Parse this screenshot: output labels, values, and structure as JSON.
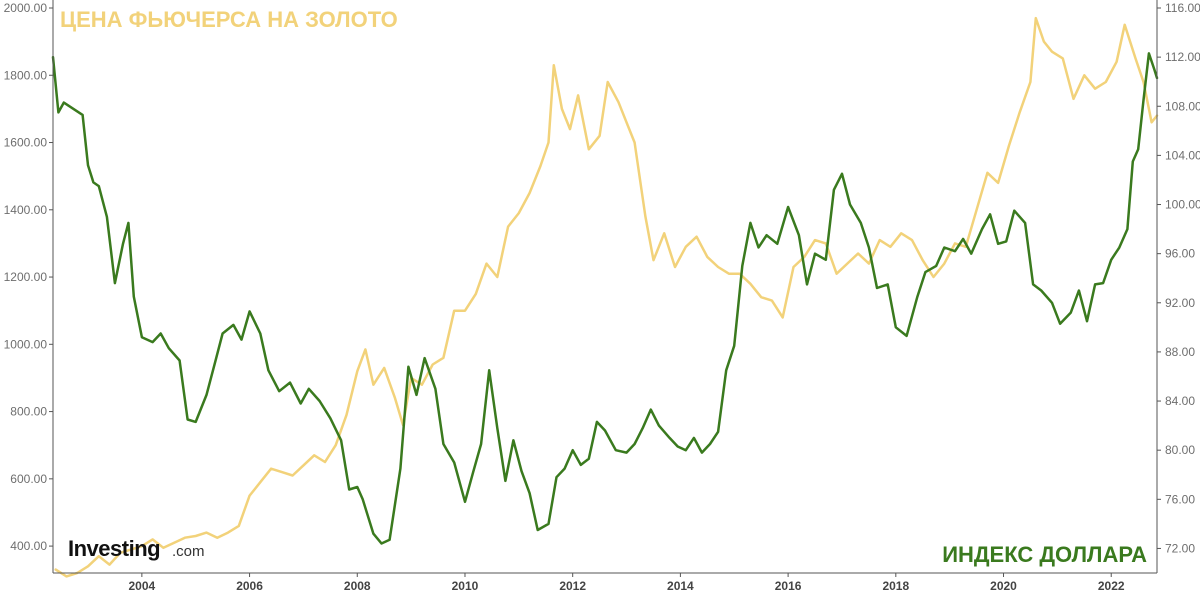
{
  "chart_data": {
    "type": "line",
    "title_gold": "ЦЕНА ФЬЮЧЕРСА НА ЗОЛОТО",
    "title_green": "ИНДЕКС ДОЛЛАРА",
    "brand_name": "Investing",
    "brand_suffix": ".com",
    "colors": {
      "gold": "#f2d27a",
      "green": "#3a7a1e",
      "axis": "#555555",
      "tick_text": "#6e6e6e"
    },
    "grid": false,
    "x_range": [
      2002.35,
      2022.85
    ],
    "x_ticks": [
      "2004",
      "2006",
      "2008",
      "2010",
      "2012",
      "2014",
      "2016",
      "2018",
      "2020",
      "2022"
    ],
    "y_left": {
      "range": [
        320,
        2000
      ],
      "ticks": [
        "2000.00",
        "1800.00",
        "1600.00",
        "1400.00",
        "1200.00",
        "1000.00",
        "800.00",
        "600.00",
        "400.00"
      ]
    },
    "y_right": {
      "range": [
        70,
        116
      ],
      "ticks": [
        "116.00",
        "112.00",
        "108.00",
        "104.00",
        "100.00",
        "96.00",
        "92.00",
        "88.00",
        "84.00",
        "80.00",
        "76.00",
        "72.00"
      ]
    },
    "series": [
      {
        "name": "ЦЕНА ФЬЮЧЕРСА НА ЗОЛОТО",
        "axis": "left",
        "color": "#f2d27a",
        "points": [
          [
            2002.4,
            330
          ],
          [
            2002.6,
            310
          ],
          [
            2002.8,
            320
          ],
          [
            2003.0,
            340
          ],
          [
            2003.2,
            370
          ],
          [
            2003.4,
            345
          ],
          [
            2003.6,
            380
          ],
          [
            2003.8,
            390
          ],
          [
            2004.0,
            400
          ],
          [
            2004.2,
            420
          ],
          [
            2004.4,
            395
          ],
          [
            2004.6,
            410
          ],
          [
            2004.8,
            425
          ],
          [
            2005.0,
            430
          ],
          [
            2005.2,
            440
          ],
          [
            2005.4,
            425
          ],
          [
            2005.6,
            440
          ],
          [
            2005.8,
            460
          ],
          [
            2006.0,
            550
          ],
          [
            2006.2,
            590
          ],
          [
            2006.4,
            630
          ],
          [
            2006.6,
            620
          ],
          [
            2006.8,
            610
          ],
          [
            2007.0,
            640
          ],
          [
            2007.2,
            670
          ],
          [
            2007.4,
            650
          ],
          [
            2007.6,
            700
          ],
          [
            2007.8,
            790
          ],
          [
            2008.0,
            920
          ],
          [
            2008.15,
            985
          ],
          [
            2008.3,
            880
          ],
          [
            2008.5,
            930
          ],
          [
            2008.7,
            840
          ],
          [
            2008.85,
            760
          ],
          [
            2009.0,
            900
          ],
          [
            2009.2,
            880
          ],
          [
            2009.4,
            940
          ],
          [
            2009.6,
            960
          ],
          [
            2009.8,
            1100
          ],
          [
            2010.0,
            1100
          ],
          [
            2010.2,
            1150
          ],
          [
            2010.4,
            1240
          ],
          [
            2010.6,
            1200
          ],
          [
            2010.8,
            1350
          ],
          [
            2011.0,
            1390
          ],
          [
            2011.2,
            1450
          ],
          [
            2011.4,
            1530
          ],
          [
            2011.55,
            1600
          ],
          [
            2011.65,
            1830
          ],
          [
            2011.8,
            1700
          ],
          [
            2011.95,
            1640
          ],
          [
            2012.1,
            1740
          ],
          [
            2012.3,
            1580
          ],
          [
            2012.5,
            1620
          ],
          [
            2012.65,
            1780
          ],
          [
            2012.85,
            1720
          ],
          [
            2013.0,
            1660
          ],
          [
            2013.15,
            1600
          ],
          [
            2013.35,
            1380
          ],
          [
            2013.5,
            1250
          ],
          [
            2013.7,
            1330
          ],
          [
            2013.9,
            1230
          ],
          [
            2014.1,
            1290
          ],
          [
            2014.3,
            1320
          ],
          [
            2014.5,
            1260
          ],
          [
            2014.7,
            1230
          ],
          [
            2014.9,
            1210
          ],
          [
            2015.1,
            1210
          ],
          [
            2015.3,
            1180
          ],
          [
            2015.5,
            1140
          ],
          [
            2015.7,
            1130
          ],
          [
            2015.9,
            1080
          ],
          [
            2016.1,
            1230
          ],
          [
            2016.3,
            1260
          ],
          [
            2016.5,
            1310
          ],
          [
            2016.7,
            1300
          ],
          [
            2016.9,
            1210
          ],
          [
            2017.1,
            1240
          ],
          [
            2017.3,
            1270
          ],
          [
            2017.5,
            1240
          ],
          [
            2017.7,
            1310
          ],
          [
            2017.9,
            1290
          ],
          [
            2018.1,
            1330
          ],
          [
            2018.3,
            1310
          ],
          [
            2018.5,
            1250
          ],
          [
            2018.7,
            1200
          ],
          [
            2018.9,
            1240
          ],
          [
            2019.1,
            1300
          ],
          [
            2019.3,
            1290
          ],
          [
            2019.5,
            1400
          ],
          [
            2019.7,
            1510
          ],
          [
            2019.9,
            1480
          ],
          [
            2020.1,
            1590
          ],
          [
            2020.3,
            1690
          ],
          [
            2020.5,
            1780
          ],
          [
            2020.6,
            1970
          ],
          [
            2020.75,
            1900
          ],
          [
            2020.9,
            1870
          ],
          [
            2021.1,
            1850
          ],
          [
            2021.3,
            1730
          ],
          [
            2021.5,
            1800
          ],
          [
            2021.7,
            1760
          ],
          [
            2021.9,
            1780
          ],
          [
            2022.1,
            1840
          ],
          [
            2022.25,
            1950
          ],
          [
            2022.45,
            1850
          ],
          [
            2022.6,
            1780
          ],
          [
            2022.75,
            1660
          ],
          [
            2022.85,
            1680
          ]
        ]
      },
      {
        "name": "ИНДЕКС ДОЛЛАРА",
        "axis": "right",
        "color": "#3a7a1e",
        "points": [
          [
            2002.35,
            112.0
          ],
          [
            2002.45,
            107.5
          ],
          [
            2002.55,
            108.3
          ],
          [
            2002.9,
            107.3
          ],
          [
            2003.0,
            103.2
          ],
          [
            2003.1,
            101.8
          ],
          [
            2003.2,
            101.5
          ],
          [
            2003.35,
            99.0
          ],
          [
            2003.5,
            93.6
          ],
          [
            2003.65,
            96.8
          ],
          [
            2003.75,
            98.5
          ],
          [
            2003.85,
            92.5
          ],
          [
            2004.0,
            89.2
          ],
          [
            2004.2,
            88.8
          ],
          [
            2004.35,
            89.5
          ],
          [
            2004.5,
            88.3
          ],
          [
            2004.7,
            87.3
          ],
          [
            2004.85,
            82.5
          ],
          [
            2005.0,
            82.3
          ],
          [
            2005.2,
            84.5
          ],
          [
            2005.35,
            87.0
          ],
          [
            2005.5,
            89.5
          ],
          [
            2005.7,
            90.2
          ],
          [
            2005.85,
            89.0
          ],
          [
            2006.0,
            91.3
          ],
          [
            2006.2,
            89.5
          ],
          [
            2006.35,
            86.5
          ],
          [
            2006.55,
            84.8
          ],
          [
            2006.75,
            85.5
          ],
          [
            2006.95,
            83.8
          ],
          [
            2007.1,
            85.0
          ],
          [
            2007.3,
            84.0
          ],
          [
            2007.5,
            82.6
          ],
          [
            2007.7,
            80.8
          ],
          [
            2007.85,
            76.8
          ],
          [
            2008.0,
            77.0
          ],
          [
            2008.1,
            76.0
          ],
          [
            2008.3,
            73.2
          ],
          [
            2008.45,
            72.4
          ],
          [
            2008.6,
            72.7
          ],
          [
            2008.8,
            78.5
          ],
          [
            2008.95,
            86.8
          ],
          [
            2009.1,
            84.5
          ],
          [
            2009.25,
            87.5
          ],
          [
            2009.45,
            85.0
          ],
          [
            2009.6,
            80.5
          ],
          [
            2009.8,
            79.0
          ],
          [
            2010.0,
            75.8
          ],
          [
            2010.15,
            78.2
          ],
          [
            2010.3,
            80.5
          ],
          [
            2010.45,
            86.5
          ],
          [
            2010.6,
            81.8
          ],
          [
            2010.75,
            77.5
          ],
          [
            2010.9,
            80.8
          ],
          [
            2011.05,
            78.3
          ],
          [
            2011.2,
            76.5
          ],
          [
            2011.35,
            73.5
          ],
          [
            2011.55,
            74.0
          ],
          [
            2011.7,
            77.8
          ],
          [
            2011.85,
            78.5
          ],
          [
            2012.0,
            80.0
          ],
          [
            2012.15,
            78.8
          ],
          [
            2012.3,
            79.3
          ],
          [
            2012.45,
            82.3
          ],
          [
            2012.6,
            81.6
          ],
          [
            2012.8,
            80.0
          ],
          [
            2013.0,
            79.8
          ],
          [
            2013.15,
            80.5
          ],
          [
            2013.3,
            81.8
          ],
          [
            2013.45,
            83.3
          ],
          [
            2013.6,
            82.0
          ],
          [
            2013.8,
            81.0
          ],
          [
            2013.95,
            80.3
          ],
          [
            2014.1,
            80.0
          ],
          [
            2014.25,
            81.0
          ],
          [
            2014.4,
            79.8
          ],
          [
            2014.55,
            80.5
          ],
          [
            2014.7,
            81.5
          ],
          [
            2014.85,
            86.5
          ],
          [
            2015.0,
            88.5
          ],
          [
            2015.15,
            95.0
          ],
          [
            2015.3,
            98.5
          ],
          [
            2015.45,
            96.5
          ],
          [
            2015.6,
            97.5
          ],
          [
            2015.8,
            96.8
          ],
          [
            2016.0,
            99.8
          ],
          [
            2016.2,
            97.5
          ],
          [
            2016.35,
            93.5
          ],
          [
            2016.5,
            96.0
          ],
          [
            2016.7,
            95.5
          ],
          [
            2016.85,
            101.2
          ],
          [
            2017.0,
            102.5
          ],
          [
            2017.15,
            100.0
          ],
          [
            2017.35,
            98.5
          ],
          [
            2017.5,
            96.5
          ],
          [
            2017.65,
            93.2
          ],
          [
            2017.85,
            93.5
          ],
          [
            2018.0,
            90.0
          ],
          [
            2018.2,
            89.3
          ],
          [
            2018.4,
            92.5
          ],
          [
            2018.55,
            94.5
          ],
          [
            2018.75,
            95.0
          ],
          [
            2018.9,
            96.5
          ],
          [
            2019.1,
            96.2
          ],
          [
            2019.25,
            97.2
          ],
          [
            2019.4,
            96.0
          ],
          [
            2019.6,
            98.0
          ],
          [
            2019.75,
            99.2
          ],
          [
            2019.9,
            96.8
          ],
          [
            2020.05,
            97.0
          ],
          [
            2020.2,
            99.5
          ],
          [
            2020.4,
            98.5
          ],
          [
            2020.55,
            93.5
          ],
          [
            2020.7,
            93.0
          ],
          [
            2020.9,
            92.0
          ],
          [
            2021.05,
            90.3
          ],
          [
            2021.25,
            91.2
          ],
          [
            2021.4,
            93.0
          ],
          [
            2021.55,
            90.5
          ],
          [
            2021.7,
            93.5
          ],
          [
            2021.85,
            93.6
          ],
          [
            2022.0,
            95.5
          ],
          [
            2022.15,
            96.5
          ],
          [
            2022.3,
            98.0
          ],
          [
            2022.4,
            103.5
          ],
          [
            2022.5,
            104.5
          ],
          [
            2022.6,
            108.5
          ],
          [
            2022.7,
            112.3
          ],
          [
            2022.8,
            111.0
          ],
          [
            2022.85,
            110.3
          ]
        ]
      }
    ]
  }
}
